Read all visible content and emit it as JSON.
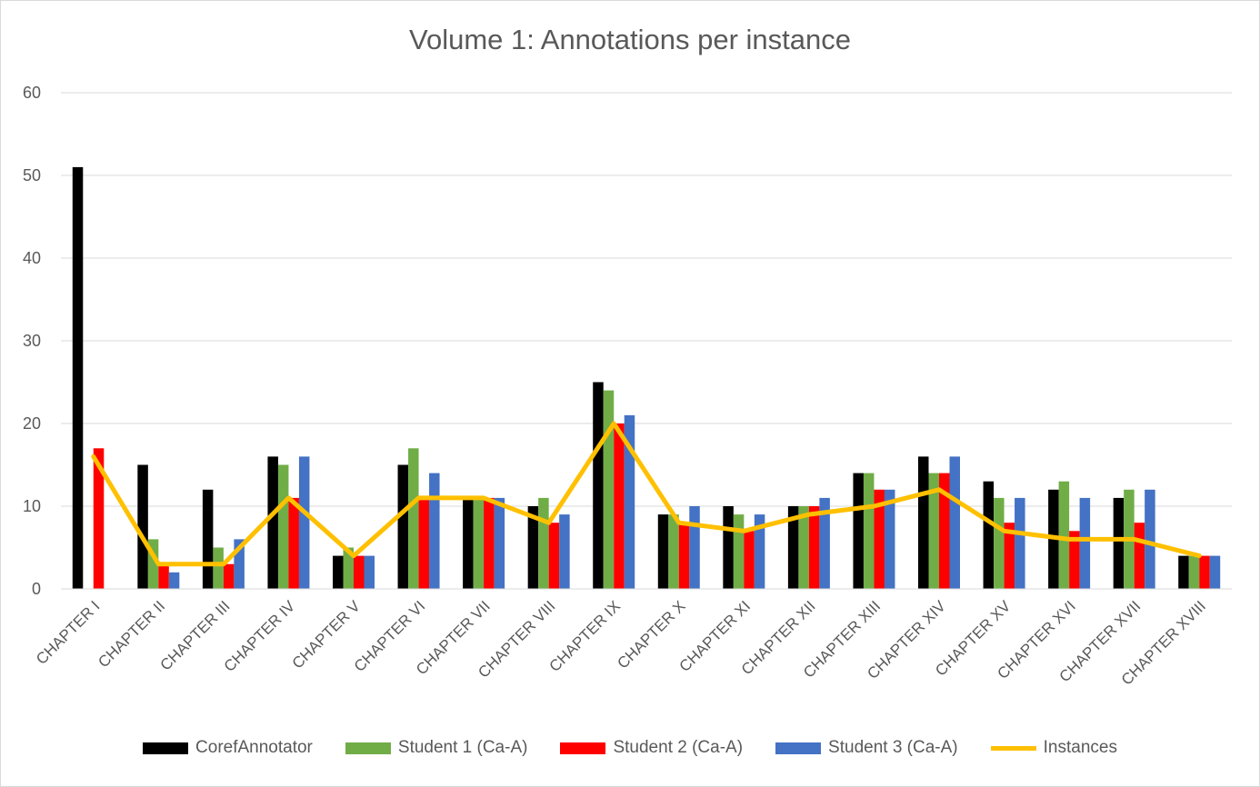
{
  "chart_data": {
    "type": "bar",
    "title": "Volume 1: Annotations per instance",
    "categories": [
      "CHAPTER I",
      "CHAPTER II",
      "CHAPTER III",
      "CHAPTER IV",
      "CHAPTER V",
      "CHAPTER VI",
      "CHAPTER VII",
      "CHAPTER VIII",
      "CHAPTER IX",
      "CHAPTER X",
      "CHAPTER XI",
      "CHAPTER XII",
      "CHAPTER XIII",
      "CHAPTER XIV",
      "CHAPTER XV",
      "CHAPTER XVI",
      "CHAPTER XVII",
      "CHAPTER XVIII"
    ],
    "series": [
      {
        "name": "CorefAnnotator",
        "kind": "bar",
        "color": "#000000",
        "values": [
          51,
          15,
          12,
          16,
          4,
          15,
          11,
          10,
          25,
          9,
          10,
          10,
          14,
          16,
          13,
          12,
          11,
          4
        ]
      },
      {
        "name": "Student 1 (Ca-A)",
        "kind": "bar",
        "color": "#70ad47",
        "values": [
          0,
          6,
          5,
          15,
          5,
          17,
          11,
          11,
          24,
          9,
          9,
          10,
          14,
          14,
          11,
          13,
          12,
          4
        ]
      },
      {
        "name": "Student 2 (Ca-A)",
        "kind": "bar",
        "color": "#ff0000",
        "values": [
          17,
          3,
          3,
          11,
          4,
          11,
          11,
          8,
          20,
          8,
          7,
          10,
          12,
          14,
          8,
          7,
          8,
          4
        ]
      },
      {
        "name": "Student 3 (Ca-A)",
        "kind": "bar",
        "color": "#4472c4",
        "values": [
          0,
          2,
          6,
          16,
          4,
          14,
          11,
          9,
          21,
          10,
          9,
          11,
          12,
          16,
          11,
          11,
          12,
          4
        ]
      },
      {
        "name": "Instances",
        "kind": "line",
        "color": "#ffc000",
        "values": [
          16,
          3,
          3,
          11,
          4,
          11,
          11,
          8,
          20,
          8,
          7,
          9,
          10,
          12,
          7,
          6,
          6,
          4
        ]
      }
    ],
    "ylim": [
      0,
      60
    ],
    "yticks": [
      0,
      10,
      20,
      30,
      40,
      50,
      60
    ],
    "grid": true,
    "legend_position": "bottom"
  }
}
